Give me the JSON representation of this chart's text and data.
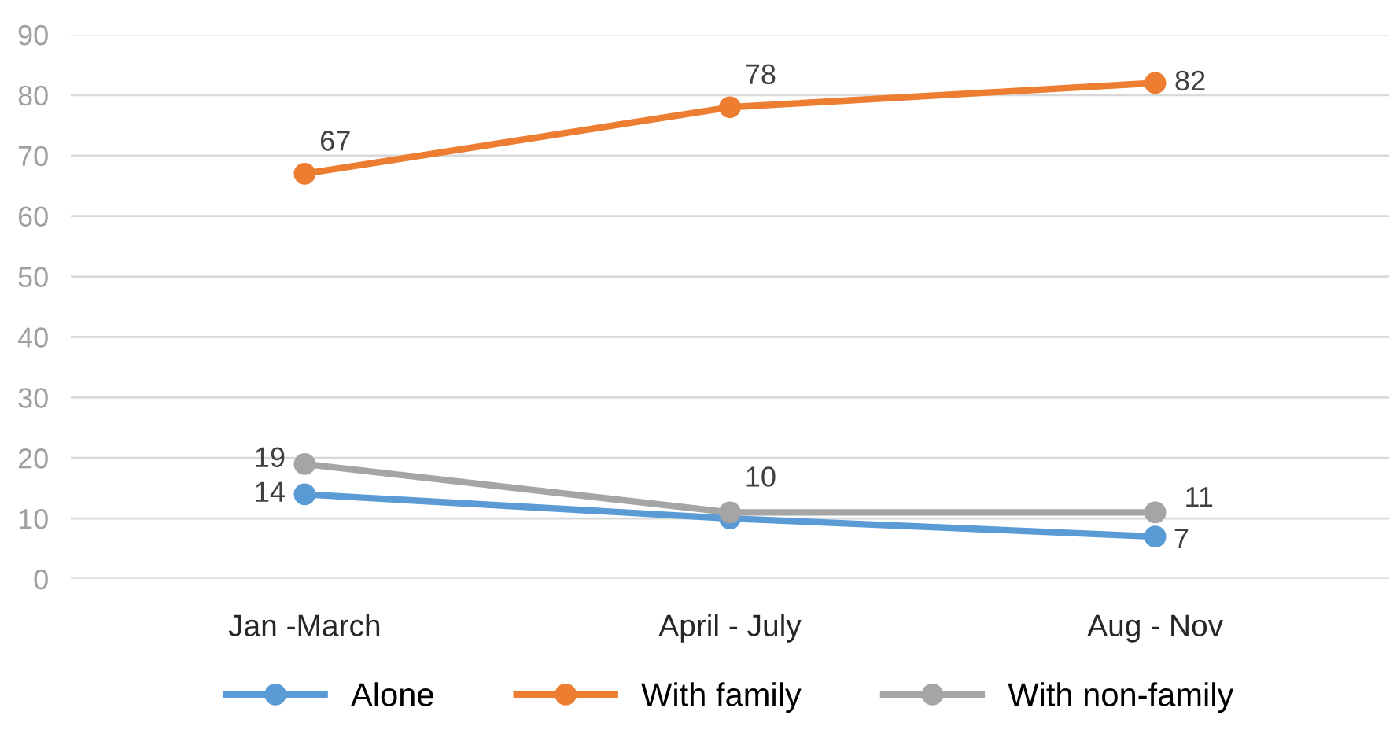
{
  "chart_data": {
    "type": "line",
    "categories": [
      "Jan -March",
      "April - July",
      "Aug - Nov"
    ],
    "series": [
      {
        "name": "Alone",
        "color": "#5b9bd5",
        "values": [
          14,
          10,
          7
        ],
        "value_labels": [
          "14",
          "10",
          "7"
        ]
      },
      {
        "name": "With family",
        "color": "#ed7d31",
        "values": [
          67,
          78,
          82
        ],
        "value_labels": [
          "67",
          "78",
          "82"
        ]
      },
      {
        "name": "With non-family",
        "color": "#a5a5a5",
        "values": [
          19,
          11,
          11
        ],
        "value_labels": [
          "19",
          null,
          "11"
        ]
      }
    ],
    "ylim": [
      0,
      90
    ],
    "yticks": [
      0,
      10,
      20,
      30,
      40,
      50,
      60,
      70,
      80,
      90
    ],
    "grid": "y",
    "legend": "bottom",
    "marker": "circle",
    "line_style": "solid"
  }
}
